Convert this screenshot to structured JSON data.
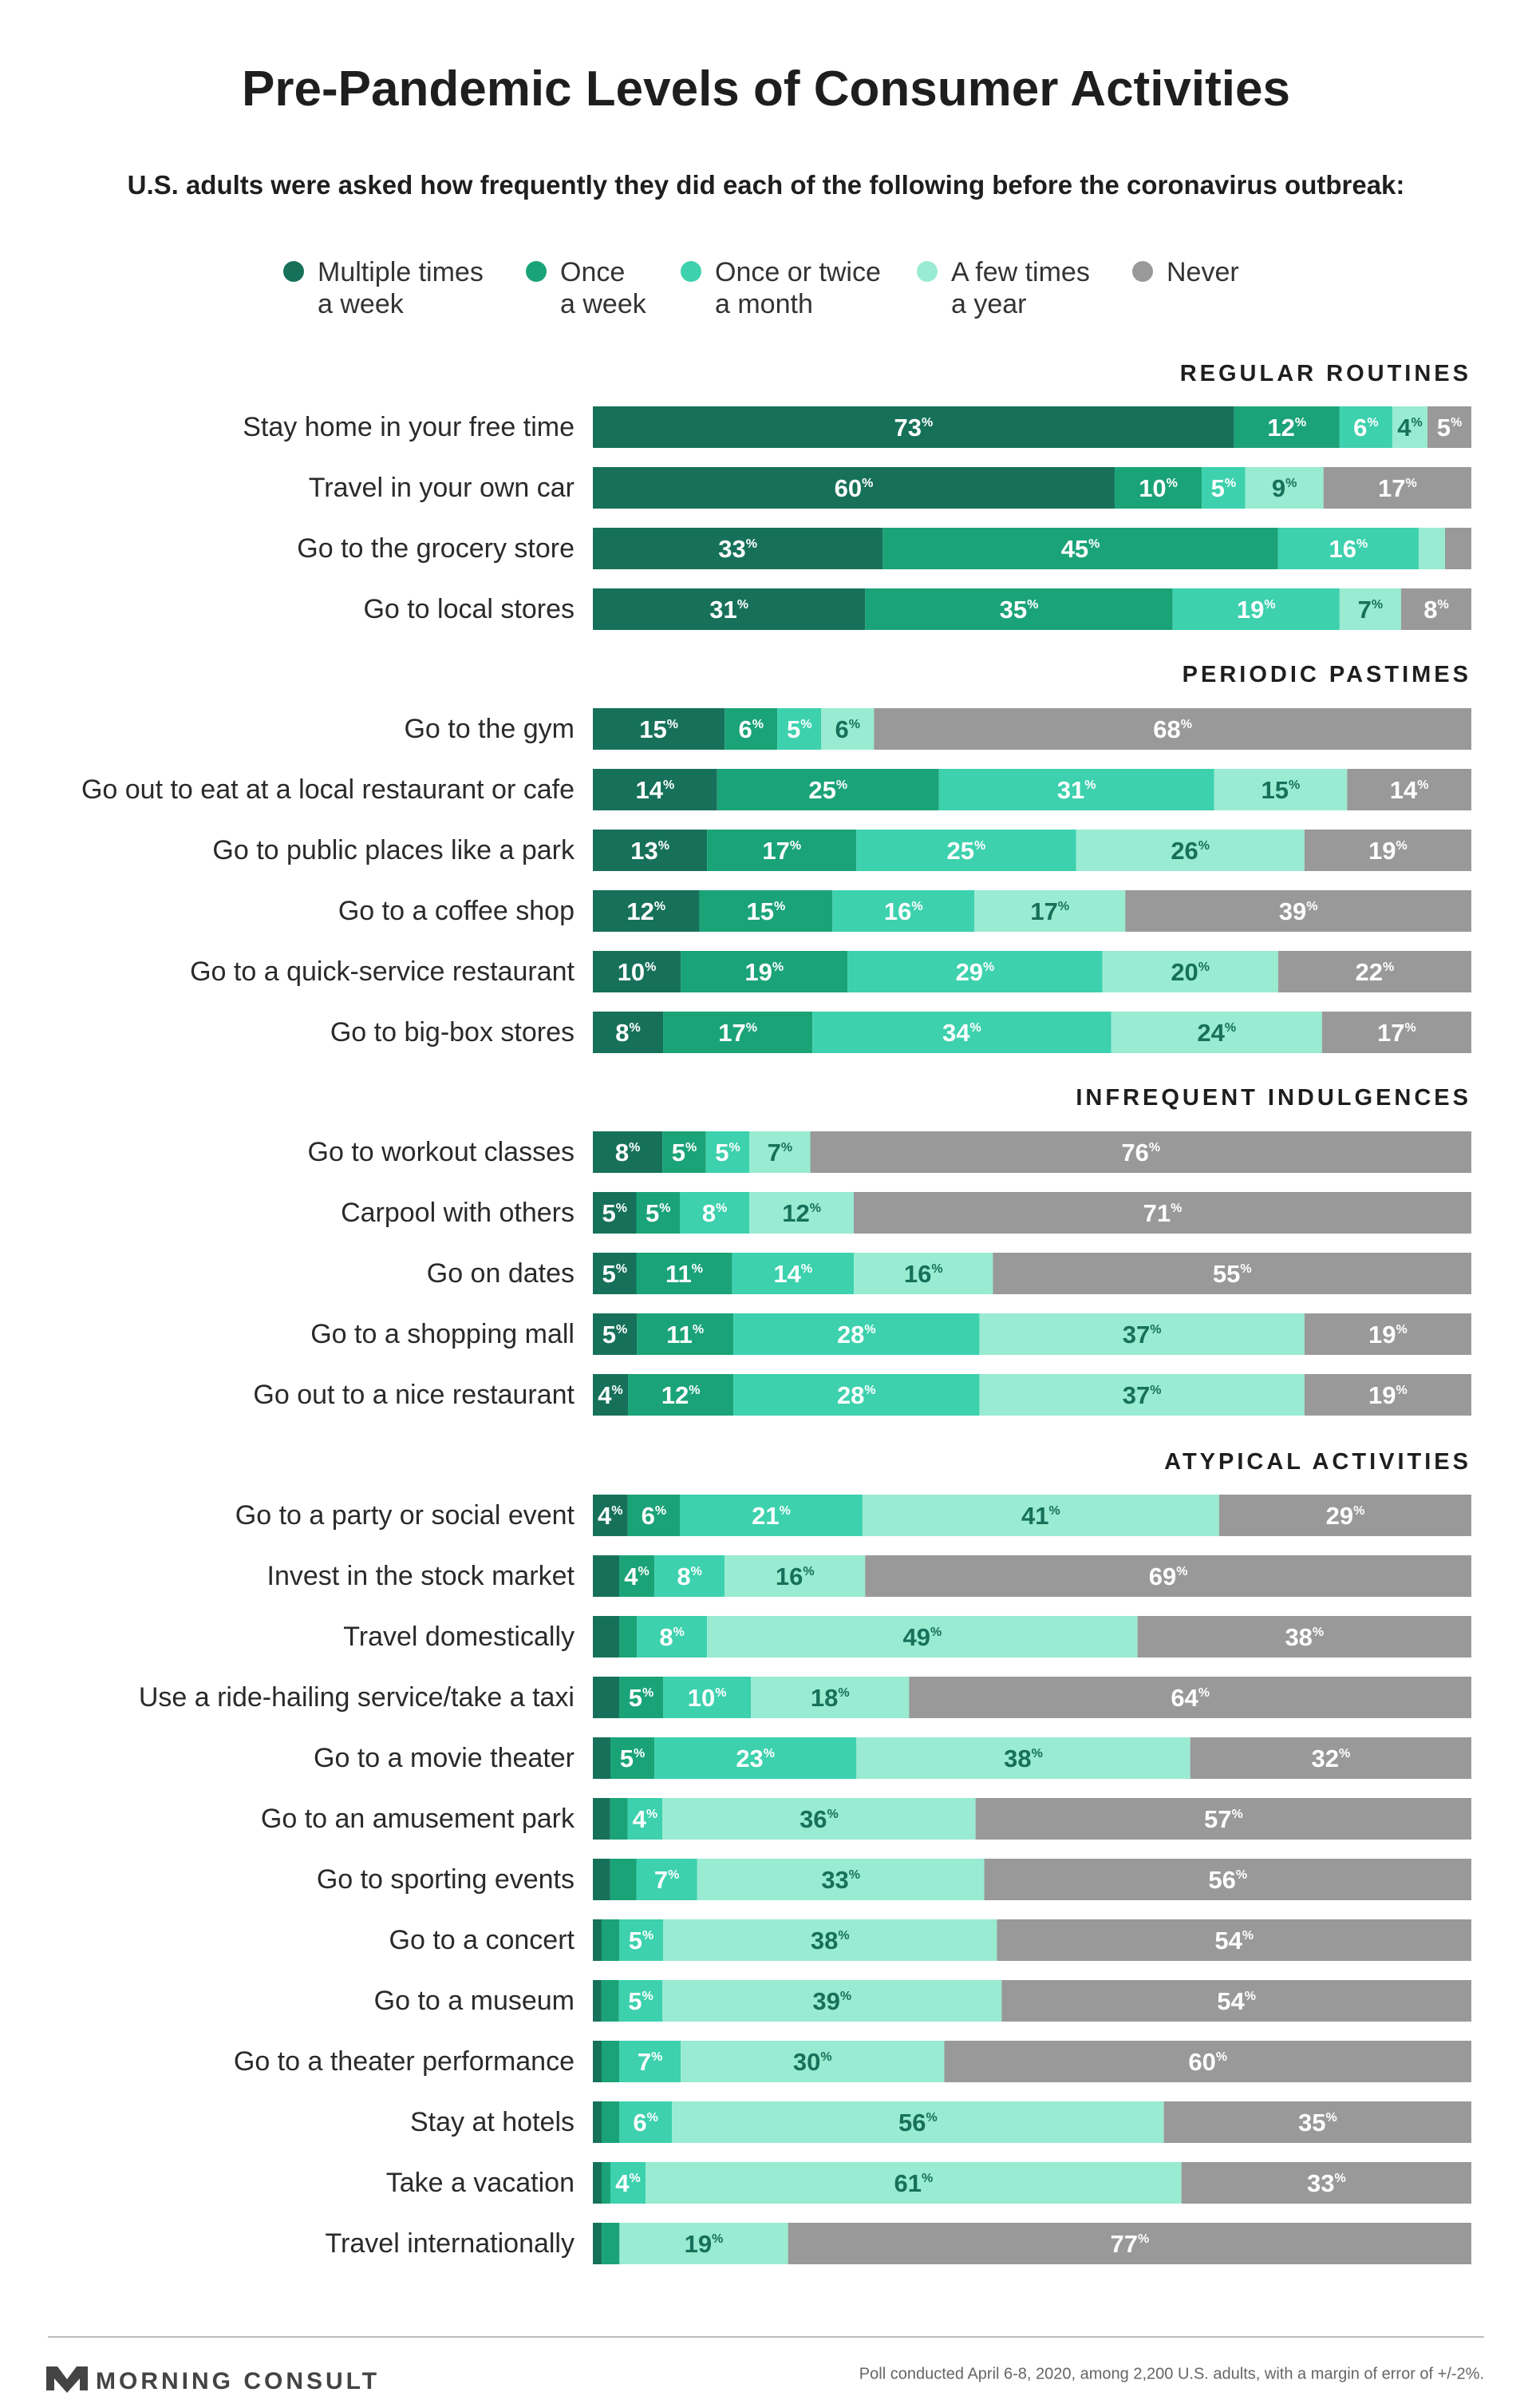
{
  "title": "Pre-Pandemic Levels of Consumer Activities",
  "subtitle": "U.S. adults were asked how frequently they did each of the following before the coronavirus outbreak:",
  "legend": [
    {
      "key": "multiple_week",
      "lines": [
        "Multiple times",
        "a week"
      ],
      "color": "#17715a"
    },
    {
      "key": "once_week",
      "lines": [
        "Once",
        "a week"
      ],
      "color": "#1ba378"
    },
    {
      "key": "month",
      "lines": [
        "Once or twice",
        "a month"
      ],
      "color": "#3dd1ae"
    },
    {
      "key": "year",
      "lines": [
        "A few times",
        "a year"
      ],
      "color": "#99ebd2"
    },
    {
      "key": "never",
      "lines": [
        "Never"
      ],
      "color": "#999999"
    }
  ],
  "label_colors": {
    "on_dark": "#ffffff",
    "on_light": "#17715a"
  },
  "footer": {
    "brand": "MORNING CONSULT",
    "note": "Poll conducted April 6-8, 2020, among 2,200 U.S. adults, with a margin of error of +/-2%."
  },
  "chart_data": {
    "type": "bar",
    "orientation": "horizontal",
    "stacked": true,
    "units": "%",
    "xlim": [
      0,
      100
    ],
    "series_names": [
      "Multiple times a week",
      "Once a week",
      "Once or twice a month",
      "A few times a year",
      "Never"
    ],
    "sections": [
      {
        "name": "REGULAR ROUTINES",
        "rows": [
          {
            "label": "Stay home in your free time",
            "values": [
              73,
              12,
              6,
              4,
              5
            ]
          },
          {
            "label": "Travel in your own car",
            "values": [
              60,
              10,
              5,
              9,
              17
            ]
          },
          {
            "label": "Go to the grocery store",
            "values": [
              33,
              45,
              16,
              3,
              3
            ]
          },
          {
            "label": "Go to local stores",
            "values": [
              31,
              35,
              19,
              7,
              8
            ]
          }
        ]
      },
      {
        "name": "PERIODIC PASTIMES",
        "rows": [
          {
            "label": "Go to the gym",
            "values": [
              15,
              6,
              5,
              6,
              68
            ]
          },
          {
            "label": "Go out to eat at a local restaurant or cafe",
            "values": [
              14,
              25,
              31,
              15,
              14
            ]
          },
          {
            "label": "Go to public places like a park",
            "values": [
              13,
              17,
              25,
              26,
              19
            ]
          },
          {
            "label": "Go to a coffee shop",
            "values": [
              12,
              15,
              16,
              17,
              39
            ]
          },
          {
            "label": "Go to a quick-service restaurant",
            "values": [
              10,
              19,
              29,
              20,
              22
            ]
          },
          {
            "label": "Go to big-box stores",
            "values": [
              8,
              17,
              34,
              24,
              17
            ]
          }
        ]
      },
      {
        "name": "INFREQUENT INDULGENCES",
        "rows": [
          {
            "label": "Go to workout classes",
            "values": [
              8,
              5,
              5,
              7,
              76
            ]
          },
          {
            "label": "Carpool with others",
            "values": [
              5,
              5,
              8,
              12,
              71
            ]
          },
          {
            "label": "Go on dates",
            "values": [
              5,
              11,
              14,
              16,
              55
            ]
          },
          {
            "label": "Go to a shopping mall",
            "values": [
              5,
              11,
              28,
              37,
              19
            ]
          },
          {
            "label": "Go out to a nice restaurant",
            "values": [
              4,
              12,
              28,
              37,
              19
            ]
          }
        ]
      },
      {
        "name": "ATYPICAL ACTIVITIES",
        "rows": [
          {
            "label": "Go to a party or social event",
            "values": [
              4,
              6,
              21,
              41,
              29
            ]
          },
          {
            "label": "Invest in the stock market",
            "values": [
              3,
              4,
              8,
              16,
              69
            ]
          },
          {
            "label": "Travel domestically",
            "values": [
              3,
              2,
              8,
              49,
              38
            ]
          },
          {
            "label": "Use a ride-hailing service/take a taxi",
            "values": [
              3,
              5,
              10,
              18,
              64
            ]
          },
          {
            "label": "Go to a movie theater",
            "values": [
              2,
              5,
              23,
              38,
              32
            ]
          },
          {
            "label": "Go to an amusement park",
            "values": [
              2,
              2,
              4,
              36,
              57
            ]
          },
          {
            "label": "Go to sporting events",
            "values": [
              2,
              3,
              7,
              33,
              56
            ]
          },
          {
            "label": "Go to a concert",
            "values": [
              1,
              2,
              5,
              38,
              54
            ]
          },
          {
            "label": "Go to a museum",
            "values": [
              1,
              2,
              5,
              39,
              54
            ]
          },
          {
            "label": "Go to a theater performance",
            "values": [
              1,
              2,
              7,
              30,
              60
            ]
          },
          {
            "label": "Stay at hotels",
            "values": [
              1,
              2,
              6,
              56,
              35
            ]
          },
          {
            "label": "Take a vacation",
            "values": [
              1,
              1,
              4,
              61,
              33
            ]
          },
          {
            "label": "Travel internationally",
            "values": [
              1,
              2,
              0,
              19,
              77
            ]
          }
        ]
      }
    ]
  }
}
